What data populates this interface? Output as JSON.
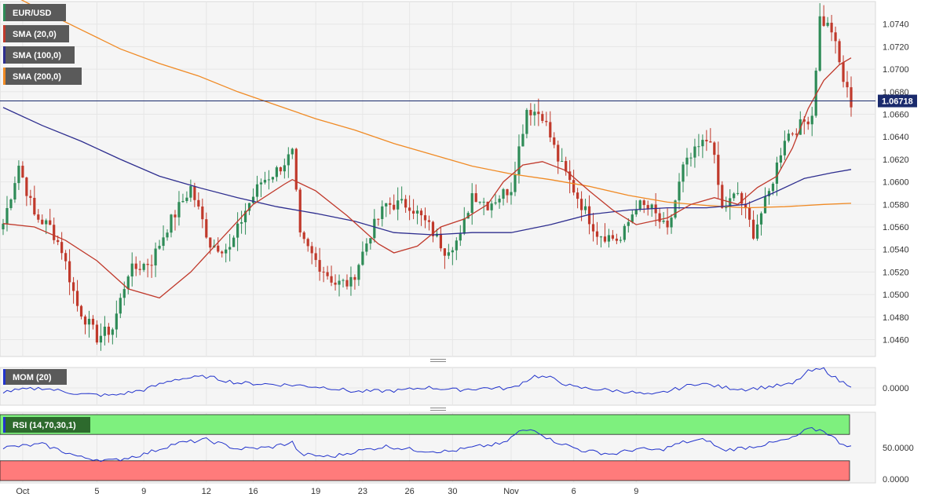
{
  "chart_data": [
    {
      "type": "candlestick",
      "symbol": "EUR/USD",
      "last_price": "1.06718",
      "ylim": [
        1.0445,
        1.076
      ],
      "y_ticks": [
        "1.0460",
        "1.0480",
        "1.0500",
        "1.0520",
        "1.0540",
        "1.0560",
        "1.0580",
        "1.0600",
        "1.0620",
        "1.0640",
        "1.0660",
        "1.0680",
        "1.0700",
        "1.0720",
        "1.0740"
      ],
      "x_ticks": [
        "Oct",
        "5",
        "9",
        "12",
        "16",
        "19",
        "23",
        "26",
        "30",
        "Nov",
        "6",
        "9"
      ],
      "indicators": [
        "SMA (20,0)",
        "SMA (100,0)",
        "SMA (200,0)"
      ],
      "colors": {
        "up": "#2e8b57",
        "down": "#c0392b",
        "sma20": "#c0392b",
        "sma100": "#2e2e8f",
        "sma200": "#f08a24",
        "price_line": "#1a2a6c"
      },
      "sma20": [
        [
          0,
          1.0563
        ],
        [
          8,
          1.056
        ],
        [
          16,
          1.0548
        ],
        [
          24,
          1.053
        ],
        [
          32,
          1.0505
        ],
        [
          40,
          1.0497
        ],
        [
          48,
          1.052
        ],
        [
          56,
          1.055
        ],
        [
          64,
          1.058
        ],
        [
          72,
          1.0598
        ],
        [
          74,
          1.0602
        ],
        [
          80,
          1.0592
        ],
        [
          88,
          1.057
        ],
        [
          96,
          1.0545
        ],
        [
          100,
          1.0537
        ],
        [
          106,
          1.0543
        ],
        [
          112,
          1.056
        ],
        [
          118,
          1.0567
        ],
        [
          124,
          1.058
        ],
        [
          128,
          1.06
        ],
        [
          133,
          1.0615
        ],
        [
          138,
          1.0618
        ],
        [
          144,
          1.061
        ],
        [
          150,
          1.0592
        ],
        [
          156,
          1.0575
        ],
        [
          162,
          1.0562
        ],
        [
          170,
          1.0568
        ],
        [
          176,
          1.058
        ],
        [
          182,
          1.0586
        ],
        [
          188,
          1.058
        ],
        [
          193,
          1.0595
        ],
        [
          198,
          1.0605
        ],
        [
          202,
          1.063
        ],
        [
          206,
          1.0665
        ],
        [
          210,
          1.069
        ],
        [
          214,
          1.0704
        ],
        [
          217,
          1.071
        ]
      ],
      "sma100": [
        [
          0,
          1.0666
        ],
        [
          10,
          1.065
        ],
        [
          20,
          1.0636
        ],
        [
          30,
          1.062
        ],
        [
          40,
          1.0605
        ],
        [
          50,
          1.0595
        ],
        [
          60,
          1.0586
        ],
        [
          70,
          1.0578
        ],
        [
          80,
          1.0572
        ],
        [
          90,
          1.0565
        ],
        [
          100,
          1.0555
        ],
        [
          110,
          1.0553
        ],
        [
          120,
          1.0555
        ],
        [
          130,
          1.0555
        ],
        [
          140,
          1.0562
        ],
        [
          150,
          1.0571
        ],
        [
          160,
          1.0575
        ],
        [
          170,
          1.0577
        ],
        [
          180,
          1.0577
        ],
        [
          190,
          1.058
        ],
        [
          197,
          1.059
        ],
        [
          205,
          1.0603
        ],
        [
          212,
          1.0608
        ],
        [
          217,
          1.0611
        ]
      ],
      "sma200": [
        [
          0,
          1.077
        ],
        [
          10,
          1.0752
        ],
        [
          20,
          1.0735
        ],
        [
          30,
          1.0718
        ],
        [
          40,
          1.0705
        ],
        [
          50,
          1.0694
        ],
        [
          60,
          1.068
        ],
        [
          70,
          1.0668
        ],
        [
          80,
          1.0656
        ],
        [
          90,
          1.0646
        ],
        [
          100,
          1.0634
        ],
        [
          110,
          1.0624
        ],
        [
          120,
          1.0614
        ],
        [
          130,
          1.0607
        ],
        [
          140,
          1.0602
        ],
        [
          150,
          1.0596
        ],
        [
          160,
          1.0588
        ],
        [
          170,
          1.0582
        ],
        [
          180,
          1.0579
        ],
        [
          190,
          1.0577
        ],
        [
          200,
          1.0578
        ],
        [
          210,
          1.058
        ],
        [
          217,
          1.0581
        ]
      ]
    },
    {
      "type": "line",
      "title": "MOM (20)",
      "y_ticks": [
        "0.0000"
      ],
      "colors": {
        "line": "#2233cc"
      }
    },
    {
      "type": "line",
      "title": "RSI (14,70,30,1)",
      "y_ticks": [
        "50.0000",
        "0.0000"
      ],
      "colors": {
        "line": "#2233cc",
        "overbought": "#7ef07e",
        "oversold": "#ff7b7b"
      }
    }
  ]
}
